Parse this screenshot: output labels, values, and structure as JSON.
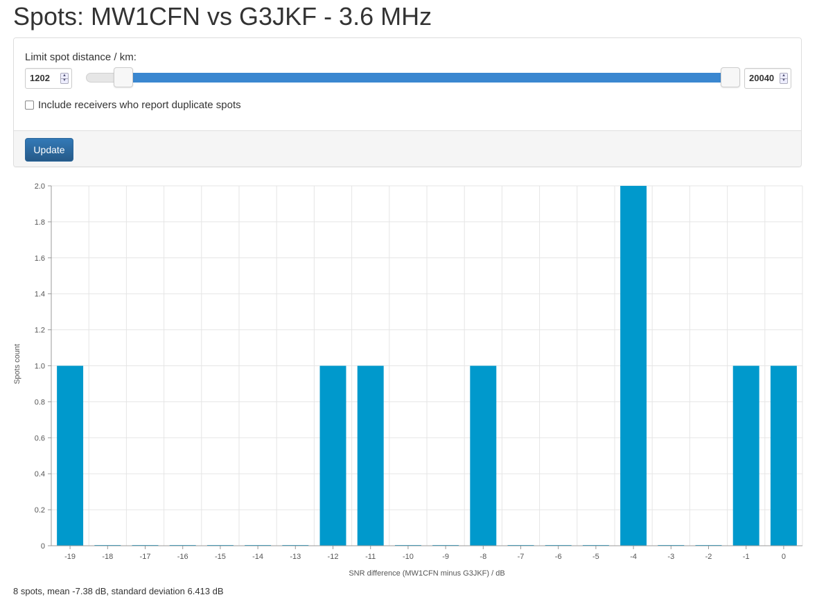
{
  "page": {
    "title": "Spots: MW1CFN vs G3JKF - 3.6 MHz"
  },
  "filter": {
    "limit_label": "Limit spot distance / km:",
    "min_distance": "1202",
    "max_distance": "20040",
    "slider_range_km": [
      0,
      20040
    ],
    "include_duplicates_label": "Include receivers who report duplicate spots",
    "include_duplicates_checked": false,
    "update_label": "Update"
  },
  "chart_data": {
    "type": "bar",
    "categories": [
      "-19",
      "-18",
      "-17",
      "-16",
      "-15",
      "-14",
      "-13",
      "-12",
      "-11",
      "-10",
      "-9",
      "-8",
      "-7",
      "-6",
      "-5",
      "-4",
      "-3",
      "-2",
      "-1",
      "0"
    ],
    "values": [
      1,
      0,
      0,
      0,
      0,
      0,
      0,
      1,
      1,
      0,
      0,
      1,
      0,
      0,
      0,
      2,
      0,
      0,
      1,
      1
    ],
    "xlabel": "SNR difference (MW1CFN minus G3JKF) / dB",
    "ylabel": "Spots count",
    "ylim": [
      0,
      2.0
    ],
    "yticks": [
      "0",
      "0.2",
      "0.4",
      "0.6",
      "0.8",
      "1.0",
      "1.2",
      "1.4",
      "1.6",
      "1.8",
      "2.0"
    ],
    "grid": true,
    "bar_color": "#0099cc"
  },
  "summary": "8 spots, mean -7.38 dB, standard deviation 6.413 dB"
}
